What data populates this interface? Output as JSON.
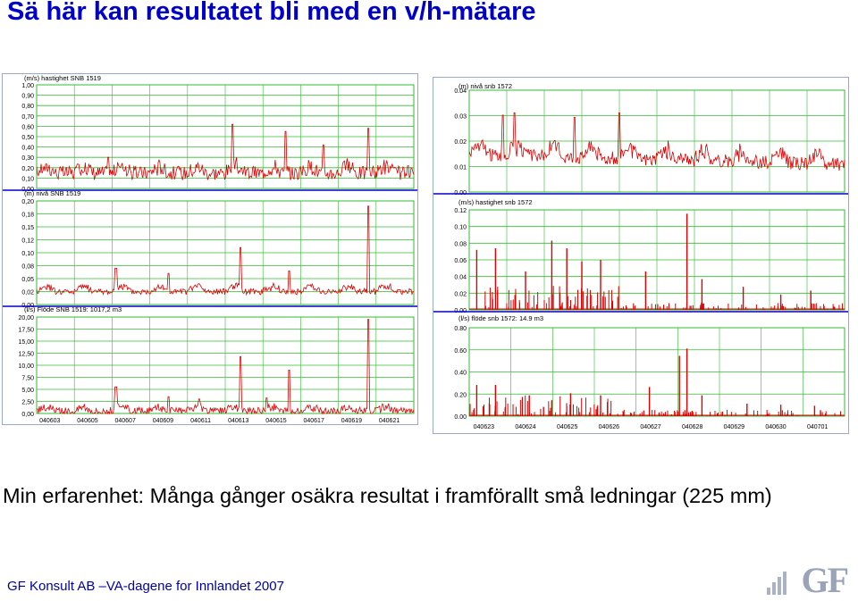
{
  "title": "Sä här kan resultatet bli med en v/h-mätare",
  "caption": "Min erfarenhet: Många gånger osäkra resultat i framförallt små ledningar (225 mm)",
  "footer": "GF Konsult AB –VA-dagene for Innlandet 2007",
  "logo_text": "GF",
  "colors": {
    "title": "#0000cc",
    "series": "#dd0000",
    "grid": "#33bb33",
    "separator": "#0000cc"
  },
  "chart_data": [
    {
      "type": "line",
      "panel": "left",
      "title": "(m/s) hastighet SNB 1519",
      "yticks": [
        "1,00",
        "0,90",
        "0,80",
        "0,70",
        "0,60",
        "0,50",
        "0,40",
        "0,30",
        "0,20",
        "0,10",
        "0,00"
      ],
      "ylim": [
        0,
        1.0
      ],
      "pattern": {
        "base": 0.15,
        "noise": 0.07,
        "daily": 0.06,
        "spikes": [
          [
            0.52,
            0.62
          ],
          [
            0.66,
            0.55
          ],
          [
            0.88,
            0.58
          ],
          [
            0.76,
            0.42
          ],
          [
            0.19,
            0.3
          ]
        ]
      }
    },
    {
      "type": "line",
      "panel": "left",
      "title": "(m) nivå SNB 1519",
      "yticks": [
        "0,20",
        "0,18",
        "0,15",
        "0,12",
        "0,10",
        "0,08",
        "0,05",
        "0,02",
        "0,00"
      ],
      "ylim": [
        0,
        0.2
      ],
      "pattern": {
        "base": 0.025,
        "noise": 0.006,
        "daily": 0.01,
        "spikes": [
          [
            0.54,
            0.11
          ],
          [
            0.88,
            0.19
          ],
          [
            0.67,
            0.065
          ],
          [
            0.21,
            0.07
          ],
          [
            0.35,
            0.06
          ]
        ]
      }
    },
    {
      "type": "line",
      "panel": "left",
      "title": "(l/s) Flöde SNB 1519: 1017,2 m3",
      "yticks": [
        "20,00",
        "17,50",
        "15,00",
        "12,50",
        "10,00",
        "7,50",
        "5,00",
        "2,50",
        "0,00"
      ],
      "ylim": [
        0,
        20
      ],
      "xlabels": [
        "040603",
        "040605",
        "040607",
        "040609",
        "040611",
        "040613",
        "040615",
        "040617",
        "040619",
        "040621"
      ],
      "pattern": {
        "base": 0.5,
        "noise": 0.8,
        "daily": 0.8,
        "spikes": [
          [
            0.88,
            19.5
          ],
          [
            0.54,
            11.8
          ],
          [
            0.67,
            9.0
          ],
          [
            0.21,
            5.5
          ],
          [
            0.43,
            3.0
          ],
          [
            0.35,
            3.5
          ],
          [
            0.61,
            3.2
          ]
        ]
      }
    },
    {
      "type": "line",
      "panel": "right",
      "title": "(m) nivå snb 1572",
      "yticks": [
        "0.04",
        "0.03",
        "0.02",
        "0.01",
        "0.00"
      ],
      "ylim": [
        0,
        0.045
      ],
      "pattern": {
        "base": 0.017,
        "noise": 0.003,
        "daily": 0.004,
        "trend": -0.012,
        "spikes": [
          [
            0.12,
            0.035
          ],
          [
            0.09,
            0.034
          ],
          [
            0.4,
            0.035
          ],
          [
            0.28,
            0.033
          ]
        ]
      }
    },
    {
      "type": "bar",
      "panel": "right",
      "title": "(m/s) hastighet snb 1572",
      "yticks": [
        "0.12",
        "0.10",
        "0.08",
        "0.06",
        "0.04",
        "0.02",
        "0.00"
      ],
      "ylim": [
        0,
        0.13
      ],
      "pattern": {
        "base": 0,
        "noise": 0,
        "daily": 0,
        "sparse": true,
        "spikes": [
          [
            0.58,
            0.125
          ],
          [
            0.07,
            0.08
          ],
          [
            0.02,
            0.078
          ],
          [
            0.22,
            0.09
          ],
          [
            0.26,
            0.08
          ],
          [
            0.3,
            0.063
          ],
          [
            0.35,
            0.065
          ],
          [
            0.15,
            0.05
          ],
          [
            0.47,
            0.05
          ],
          [
            0.62,
            0.04
          ],
          [
            0.73,
            0.03
          ],
          [
            0.83,
            0.02
          ],
          [
            0.91,
            0.025
          ]
        ]
      }
    },
    {
      "type": "bar",
      "panel": "right",
      "title": "(l/s) flöde snb 1572: 14.9 m3",
      "yticks": [
        "0.80",
        "0.60",
        "0.40",
        "0.20",
        "0.00"
      ],
      "ylim": [
        0,
        0.85
      ],
      "xlabels": [
        "040623",
        "040624",
        "040625",
        "040626",
        "040627",
        "040628",
        "040629",
        "040630",
        "040701"
      ],
      "pattern": {
        "base": 0,
        "noise": 0,
        "daily": 0,
        "sparse": true,
        "spikes": [
          [
            0.58,
            0.65
          ],
          [
            0.56,
            0.58
          ],
          [
            0.02,
            0.3
          ],
          [
            0.07,
            0.3
          ],
          [
            0.16,
            0.2
          ],
          [
            0.22,
            0.15
          ],
          [
            0.27,
            0.22
          ],
          [
            0.35,
            0.2
          ],
          [
            0.48,
            0.28
          ],
          [
            0.62,
            0.2
          ],
          [
            0.74,
            0.12
          ],
          [
            0.83,
            0.11
          ],
          [
            0.92,
            0.1
          ]
        ]
      }
    }
  ]
}
